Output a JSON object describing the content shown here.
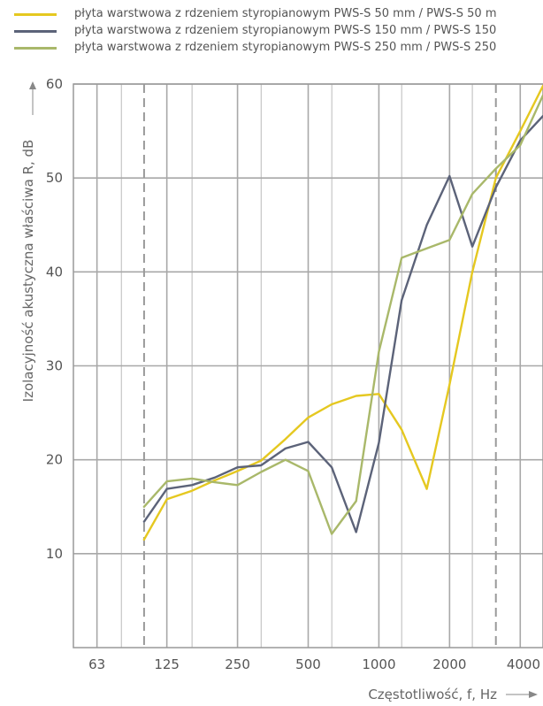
{
  "legend": [
    {
      "label": "płyta warstwowa z rdzeniem styropianowym PWS-S 50 mm / PWS-S 50 m",
      "color": "#e5c820"
    },
    {
      "label": "płyta warstwowa z rdzeniem styropianowym PWS-S 150 mm / PWS-S 150",
      "color": "#5c6379"
    },
    {
      "label": "płyta warstwowa z rdzeniem styropianowym PWS-S 250 mm / PWS-S 250",
      "color": "#a9b86a"
    }
  ],
  "colors": {
    "grid": "#a8a8a8",
    "frame": "#999999",
    "axis_arrow": "#888888"
  },
  "chart_data": {
    "type": "line",
    "xlabel": "Częstotliwość, f, Hz",
    "ylabel": "Izolacyjność akustyczna właściwa R, dB",
    "x_scale": "log",
    "ylim": [
      0,
      60
    ],
    "xlim": [
      50,
      5000
    ],
    "x_ticks": [
      63,
      125,
      250,
      500,
      1000,
      2000,
      4000
    ],
    "x_tick_labels": [
      "63",
      "125",
      "250",
      "500",
      "1000",
      "2000",
      "4000"
    ],
    "y_ticks": [
      10,
      20,
      30,
      40,
      50,
      60
    ],
    "y_tick_labels": [
      "10",
      "20",
      "30",
      "40",
      "50",
      "60"
    ],
    "grid": true,
    "dashed_vertical_markers": [
      100,
      3150
    ],
    "x": [
      100,
      125,
      160,
      200,
      250,
      315,
      400,
      500,
      630,
      800,
      1000,
      1250,
      1600,
      2000,
      2500,
      3150,
      4000,
      5000
    ],
    "series": [
      {
        "name": "płyta warstwowa z rdzeniem styropianowym PWS-S 50 mm / PWS-S 50 m",
        "values": [
          11.5,
          15.8,
          16.7,
          17.8,
          18.8,
          19.9,
          22.2,
          24.5,
          25.9,
          26.8,
          27.0,
          23.2,
          16.9,
          28.0,
          40.0,
          50.0,
          55.0,
          59.8
        ]
      },
      {
        "name": "płyta warstwowa z rdzeniem styropianowym PWS-S 150 mm / PWS-S 150",
        "values": [
          13.4,
          16.9,
          17.3,
          18.1,
          19.2,
          19.4,
          21.2,
          21.9,
          19.2,
          12.3,
          21.8,
          37.0,
          45.0,
          50.2,
          42.7,
          49.0,
          54.0,
          56.6
        ]
      },
      {
        "name": "płyta warstwowa z rdzeniem styropianowym PWS-S 250 mm / PWS-S 250",
        "values": [
          15.0,
          17.7,
          18.0,
          17.6,
          17.3,
          18.7,
          20.0,
          18.8,
          12.1,
          15.6,
          31.5,
          41.5,
          42.5,
          43.4,
          48.3,
          51.0,
          53.5,
          58.8
        ]
      }
    ]
  }
}
